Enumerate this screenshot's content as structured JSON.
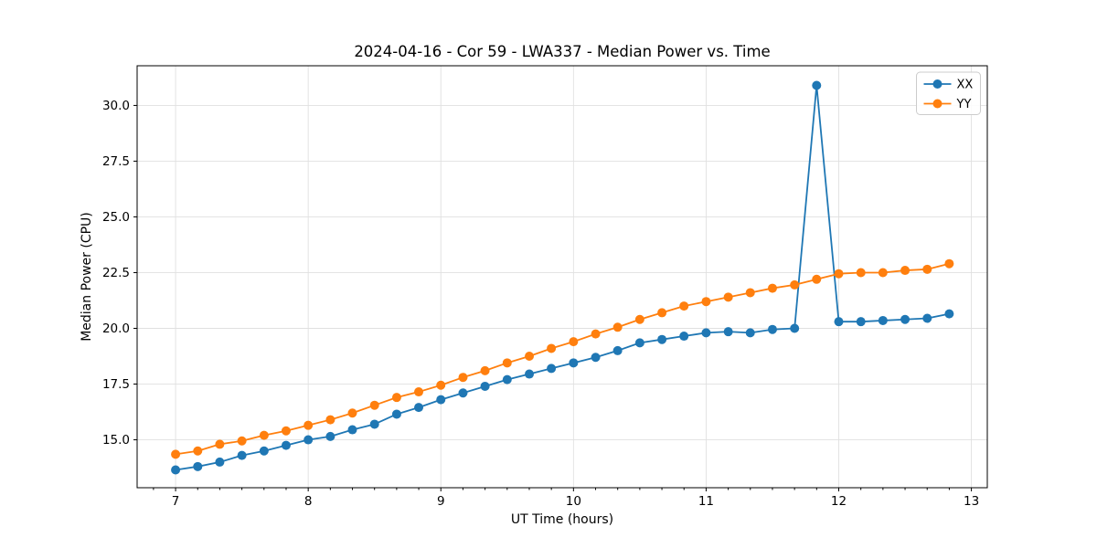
{
  "chart_data": {
    "type": "line",
    "title": "2024-04-16 - Cor 59 - LWA337 - Median Power vs. Time",
    "xlabel": "UT Time (hours)",
    "ylabel": "Median Power (CPU)",
    "xlim": [
      6.71,
      13.12
    ],
    "ylim": [
      12.85,
      31.78
    ],
    "xticks": [
      7,
      8,
      9,
      10,
      11,
      12,
      13
    ],
    "yticks": [
      15.0,
      17.5,
      20.0,
      22.5,
      25.0,
      27.5,
      30.0
    ],
    "x_minor_tick_step_hours": 0.1667,
    "grid": true,
    "grid_color": "#e0e0e0",
    "legend_position": "upper right",
    "x": [
      7.0,
      7.167,
      7.333,
      7.5,
      7.667,
      7.833,
      8.0,
      8.167,
      8.333,
      8.5,
      8.667,
      8.833,
      9.0,
      9.167,
      9.333,
      9.5,
      9.667,
      9.833,
      10.0,
      10.167,
      10.333,
      10.5,
      10.667,
      10.833,
      11.0,
      11.167,
      11.333,
      11.5,
      11.667,
      11.833,
      12.0,
      12.167,
      12.333,
      12.5,
      12.667,
      12.833
    ],
    "series": [
      {
        "name": "XX",
        "color": "#1f77b4",
        "values": [
          13.65,
          13.8,
          14.0,
          14.3,
          14.5,
          14.75,
          15.0,
          15.15,
          15.45,
          15.7,
          16.15,
          16.45,
          16.8,
          17.1,
          17.4,
          17.7,
          17.95,
          18.2,
          18.45,
          18.7,
          19.0,
          19.35,
          19.5,
          19.65,
          19.8,
          19.85,
          19.8,
          19.95,
          20.0,
          30.9,
          20.3,
          20.3,
          20.35,
          20.4,
          20.45,
          20.65
        ]
      },
      {
        "name": "YY",
        "color": "#ff7f0e",
        "values": [
          14.35,
          14.5,
          14.8,
          14.95,
          15.2,
          15.4,
          15.65,
          15.9,
          16.2,
          16.55,
          16.9,
          17.15,
          17.45,
          17.8,
          18.1,
          18.45,
          18.75,
          19.1,
          19.4,
          19.75,
          20.05,
          20.4,
          20.7,
          21.0,
          21.2,
          21.4,
          21.6,
          21.8,
          21.95,
          22.2,
          22.45,
          22.5,
          22.5,
          22.6,
          22.65,
          22.9
        ]
      }
    ]
  }
}
